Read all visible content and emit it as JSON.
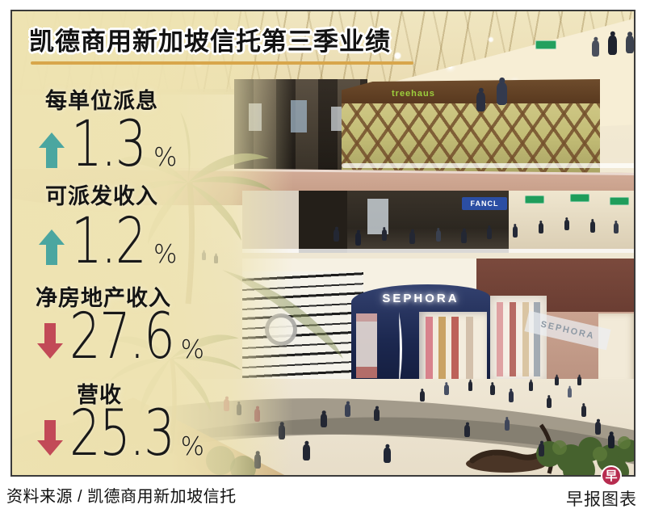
{
  "title": "凯德商用新加坡信托第三季业绩",
  "stats": [
    {
      "label": "每单位派息",
      "direction": "up",
      "value": "1.3",
      "unit": "%"
    },
    {
      "label": "可派发收入",
      "direction": "up",
      "value": "1.2",
      "unit": "%"
    },
    {
      "label": "净房地产收入",
      "direction": "down",
      "value": "27.6",
      "unit": "%"
    },
    {
      "label": "营收",
      "direction": "down",
      "value": "25.3",
      "unit": "%"
    }
  ],
  "photo": {
    "signs": {
      "treehaus": "treehaus",
      "fancl": "FANCL",
      "sephora_main": "SEPHORA",
      "sephora_side": "SEPHORA"
    }
  },
  "footer": {
    "source": "资料来源 / 凯德商用新加坡信托",
    "credit": "早报图表",
    "logo_char": "早"
  },
  "colors": {
    "up_arrow": "#4ba6a0",
    "down_arrow": "#c24a57",
    "title_underline": "#d8a64b",
    "logo_bg": "#b72c4f"
  }
}
